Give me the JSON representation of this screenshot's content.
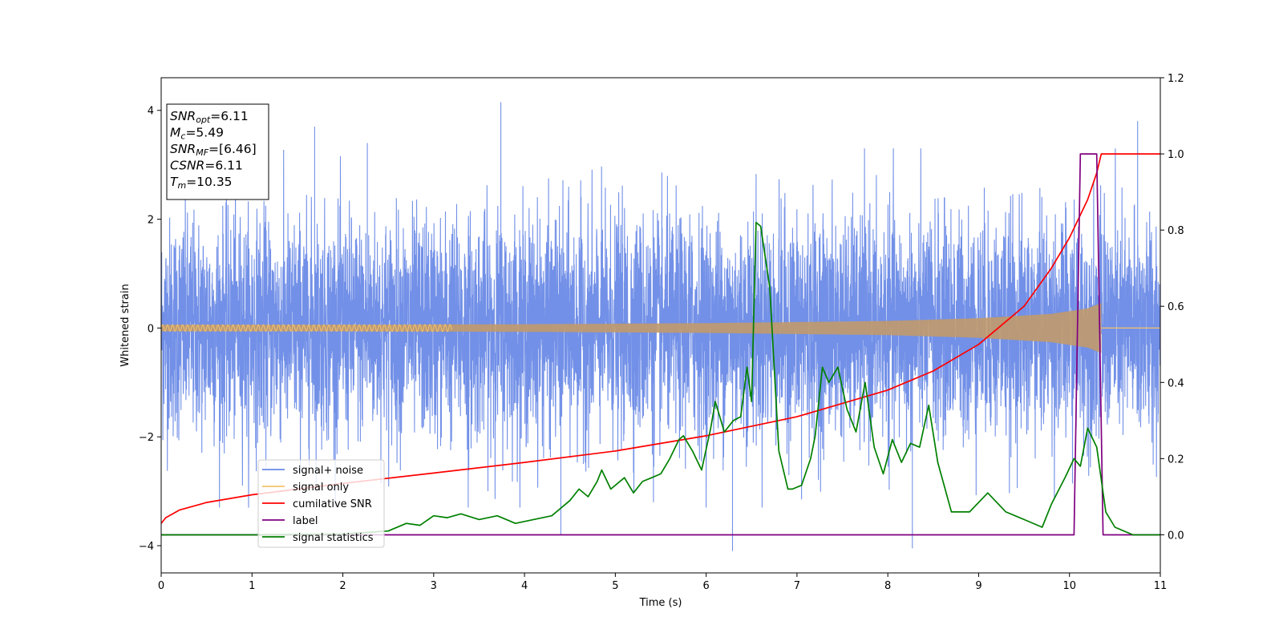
{
  "chart_data": {
    "type": "line",
    "title": "",
    "xlabel": "Time (s)",
    "ylabel": "Whitened strain",
    "y2label": "",
    "xlim": [
      0,
      11
    ],
    "ylim": [
      -4.5,
      4.6
    ],
    "y2lim": [
      -0.1,
      1.2
    ],
    "xticks": [
      0,
      1,
      2,
      3,
      4,
      5,
      6,
      7,
      8,
      9,
      10,
      11
    ],
    "yticks": [
      -4,
      -2,
      0,
      2,
      4
    ],
    "y2ticks": [
      0.0,
      0.2,
      0.4,
      0.6,
      0.8,
      1.0,
      1.2
    ],
    "legend_position": "lower-left",
    "annotation": [
      {
        "main": "SNR",
        "sub": "opt",
        "value": "=6.11"
      },
      {
        "main": "M",
        "sub": "c",
        "value": "=5.49"
      },
      {
        "main": "SNR",
        "sub": "MF",
        "value": "=[6.46]"
      },
      {
        "main": "CSNR",
        "sub": "",
        "value": "=6.11"
      },
      {
        "main": "T",
        "sub": "m",
        "value": "=10.35"
      }
    ],
    "series": [
      {
        "name": "signal+ noise",
        "axis": "left",
        "color": "#6a8ae6",
        "kind": "noise",
        "sigma": 1.0,
        "t_range": [
          0,
          11
        ],
        "spikes": [
          [
            3.74,
            4.15
          ],
          [
            6.29,
            -4.1
          ],
          [
            8.27,
            -4.05
          ],
          [
            1.69,
            3.7
          ],
          [
            4.4,
            -3.8
          ],
          [
            2.27,
            3.4
          ],
          [
            10.75,
            3.8
          ],
          [
            3.38,
            -3.3
          ],
          [
            5.42,
            -3.2
          ],
          [
            7.05,
            -3.15
          ]
        ]
      },
      {
        "name": "signal only",
        "axis": "left",
        "color": "#f5c36a",
        "fill_color": "#c19a6b",
        "kind": "chirp",
        "t_range": [
          0,
          10.35
        ],
        "amplitude_envelope": [
          [
            0,
            0.06
          ],
          [
            2,
            0.06
          ],
          [
            4,
            0.07
          ],
          [
            6,
            0.09
          ],
          [
            8,
            0.13
          ],
          [
            9,
            0.18
          ],
          [
            9.8,
            0.26
          ],
          [
            10.2,
            0.36
          ],
          [
            10.35,
            0.46
          ]
        ]
      },
      {
        "name": "cumilative SNR",
        "axis": "right",
        "color": "#ff0000",
        "x": [
          0,
          0.05,
          0.2,
          0.5,
          1,
          2,
          3,
          4,
          5,
          6,
          7,
          8,
          8.5,
          9,
          9.5,
          9.8,
          10,
          10.1,
          10.2,
          10.3,
          10.35,
          11
        ],
        "y": [
          0.03,
          0.045,
          0.065,
          0.085,
          0.105,
          0.135,
          0.162,
          0.19,
          0.22,
          0.26,
          0.31,
          0.38,
          0.43,
          0.5,
          0.6,
          0.7,
          0.78,
          0.83,
          0.88,
          0.95,
          1.0,
          1.0
        ]
      },
      {
        "name": "label",
        "axis": "right",
        "color": "#800080",
        "x": [
          0,
          10.05,
          10.12,
          10.3,
          10.37,
          11
        ],
        "y": [
          0,
          0,
          1,
          1,
          0,
          0
        ]
      },
      {
        "name": "signal statistics",
        "axis": "right",
        "color": "#008000",
        "x": [
          0,
          1,
          2,
          2.5,
          2.7,
          2.85,
          3.0,
          3.15,
          3.3,
          3.5,
          3.7,
          3.9,
          4.1,
          4.3,
          4.5,
          4.6,
          4.7,
          4.8,
          4.85,
          4.95,
          5.1,
          5.2,
          5.3,
          5.4,
          5.5,
          5.6,
          5.7,
          5.75,
          5.85,
          5.95,
          6.05,
          6.1,
          6.2,
          6.3,
          6.38,
          6.45,
          6.5,
          6.55,
          6.6,
          6.7,
          6.8,
          6.9,
          6.95,
          7.05,
          7.15,
          7.2,
          7.28,
          7.35,
          7.45,
          7.55,
          7.65,
          7.75,
          7.85,
          7.95,
          8.05,
          8.15,
          8.25,
          8.35,
          8.45,
          8.55,
          8.7,
          8.9,
          9.1,
          9.3,
          9.5,
          9.7,
          9.8,
          9.95,
          10.05,
          10.12,
          10.2,
          10.3,
          10.4,
          10.5,
          10.7,
          11
        ],
        "y": [
          0,
          0,
          0.002,
          0.01,
          0.03,
          0.025,
          0.05,
          0.045,
          0.055,
          0.04,
          0.05,
          0.03,
          0.04,
          0.05,
          0.09,
          0.12,
          0.1,
          0.14,
          0.17,
          0.12,
          0.15,
          0.11,
          0.14,
          0.15,
          0.16,
          0.2,
          0.25,
          0.26,
          0.22,
          0.17,
          0.28,
          0.35,
          0.27,
          0.3,
          0.31,
          0.44,
          0.35,
          0.82,
          0.81,
          0.65,
          0.22,
          0.12,
          0.12,
          0.13,
          0.2,
          0.26,
          0.44,
          0.4,
          0.44,
          0.33,
          0.27,
          0.4,
          0.23,
          0.16,
          0.25,
          0.19,
          0.24,
          0.23,
          0.34,
          0.19,
          0.06,
          0.06,
          0.11,
          0.06,
          0.04,
          0.02,
          0.08,
          0.15,
          0.2,
          0.18,
          0.28,
          0.23,
          0.06,
          0.02,
          0.0,
          0.0
        ]
      }
    ]
  }
}
